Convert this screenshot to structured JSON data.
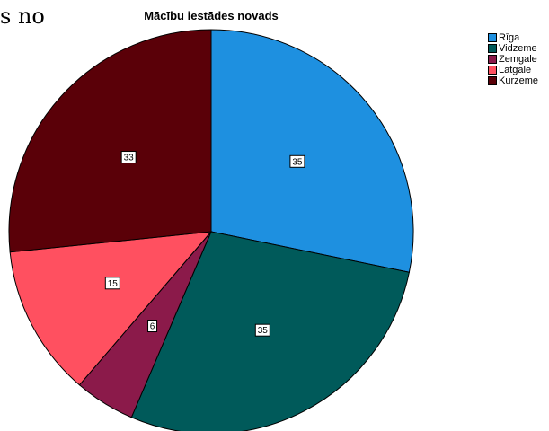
{
  "partial_text": "s no",
  "chart_data": {
    "type": "pie",
    "title": "Mācību iestādes novads",
    "legend_position": "top-right",
    "categories": [
      "Rīga",
      "Vidzeme",
      "Zemgale",
      "Latgale",
      "Kurzeme"
    ],
    "values": [
      35,
      35,
      6,
      15,
      33
    ],
    "colors": [
      "#1e90e0",
      "#005a5a",
      "#8b1a4a",
      "#ff5060",
      "#5a0008"
    ]
  }
}
